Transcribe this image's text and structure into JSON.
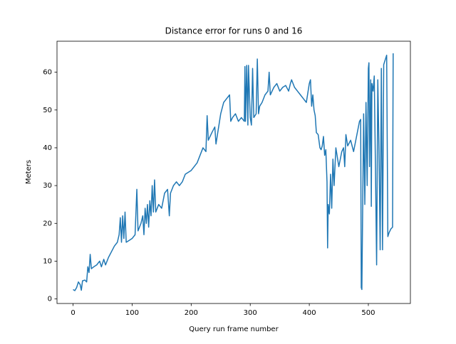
{
  "chart_data": {
    "type": "line",
    "title": "Distance error for runs 0 and 16",
    "xlabel": "Query run frame number",
    "ylabel": "Meters",
    "xlim": [
      -27.2,
      571.2
    ],
    "ylim": [
      -1.2,
      68.2
    ],
    "xticks": [
      0,
      100,
      200,
      300,
      400,
      500
    ],
    "yticks": [
      0,
      10,
      20,
      30,
      40,
      50,
      60
    ],
    "series": [
      {
        "color": "#1f77b4",
        "x": [
          0,
          3,
          6,
          9,
          12,
          14,
          16,
          20,
          23,
          25,
          27,
          29,
          31,
          35,
          40,
          45,
          48,
          52,
          55,
          60,
          65,
          70,
          75,
          78,
          80,
          82,
          84,
          86,
          88,
          90,
          95,
          100,
          105,
          108,
          110,
          115,
          118,
          120,
          122,
          124,
          126,
          128,
          130,
          132,
          134,
          136,
          138,
          140,
          145,
          150,
          155,
          160,
          163,
          165,
          170,
          175,
          180,
          185,
          190,
          200,
          210,
          215,
          220,
          225,
          227,
          229,
          235,
          240,
          242,
          245,
          250,
          255,
          260,
          265,
          267,
          270,
          275,
          280,
          285,
          290,
          291,
          292,
          294,
          296,
          297,
          300,
          302,
          304,
          306,
          310,
          312,
          314,
          316,
          320,
          325,
          330,
          332,
          334,
          340,
          345,
          350,
          355,
          360,
          365,
          368,
          370,
          375,
          380,
          385,
          390,
          395,
          400,
          402,
          404,
          406,
          408,
          410,
          412,
          415,
          418,
          420,
          422,
          424,
          426,
          428,
          430,
          431,
          432,
          434,
          436,
          438,
          440,
          442,
          445,
          450,
          455,
          458,
          460,
          462,
          465,
          470,
          475,
          480,
          485,
          487,
          488,
          489,
          490,
          492,
          494,
          496,
          498,
          500,
          501,
          502,
          504,
          505,
          506,
          508,
          510,
          512,
          514,
          516,
          518,
          520,
          522,
          524,
          526,
          528,
          530,
          531,
          533,
          535,
          538,
          541,
          542
        ],
        "values": [
          2.5,
          2.2,
          3,
          4.5,
          3.8,
          2.3,
          4.8,
          5,
          4.5,
          8.5,
          7,
          11.8,
          8,
          8.5,
          9,
          10,
          8.5,
          10.5,
          9,
          11,
          12.5,
          14,
          15,
          17,
          21.5,
          15,
          22,
          16,
          23,
          15,
          15.5,
          16,
          17,
          29,
          18,
          20,
          22,
          17,
          24,
          20,
          25,
          19,
          26,
          22,
          30,
          23,
          31.5,
          23,
          25,
          24,
          28,
          29,
          22,
          28,
          30,
          31,
          30,
          31,
          33,
          34,
          36,
          38,
          40,
          39,
          48.5,
          42,
          44,
          45.5,
          41,
          44,
          49,
          52,
          53,
          54,
          47,
          48,
          49,
          47,
          48,
          47,
          61.5,
          47,
          61.8,
          46,
          61.8,
          48,
          46,
          61,
          48,
          49,
          63.5,
          49,
          51,
          52,
          54,
          55,
          60,
          54,
          56,
          57,
          55,
          56,
          56.5,
          55,
          57,
          58,
          56,
          55,
          54,
          53,
          52,
          57,
          58,
          51,
          54,
          50,
          48.5,
          44,
          43.5,
          40,
          39.5,
          40.5,
          43,
          38,
          39.5,
          31,
          13.5,
          25,
          22.5,
          33,
          24,
          37,
          30,
          40,
          35,
          39,
          40,
          35,
          43.5,
          40.5,
          42,
          39,
          43,
          47,
          47.5,
          3,
          2.5,
          18,
          49,
          25,
          52,
          30,
          61,
          62.5,
          35,
          58,
          24.5,
          57,
          55,
          59,
          35,
          9,
          58,
          40,
          13,
          61,
          13,
          62,
          63,
          64,
          64.5,
          16.5,
          17.5,
          18.5,
          19,
          65
        ]
      }
    ]
  }
}
